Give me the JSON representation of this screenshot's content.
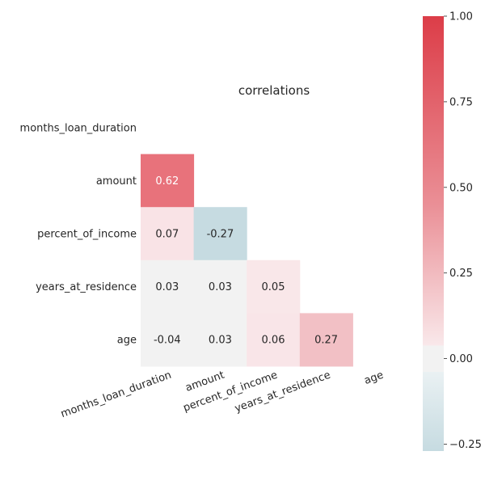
{
  "chart_data": {
    "type": "heatmap",
    "title": "correlations",
    "rows": [
      "months_loan_duration",
      "amount",
      "percent_of_income",
      "years_at_residence",
      "age"
    ],
    "columns": [
      "months_loan_duration",
      "amount",
      "percent_of_income",
      "years_at_residence",
      "age"
    ],
    "mask": "upper-triangle-and-diagonal",
    "cells": [
      {
        "row": 1,
        "col": 0,
        "label": "0.62",
        "value": 0.62,
        "color": "#e8727b"
      },
      {
        "row": 2,
        "col": 0,
        "label": "0.07",
        "value": 0.07,
        "color": "#f9e3e6"
      },
      {
        "row": 2,
        "col": 1,
        "label": "-0.27",
        "value": -0.27,
        "color": "#c6dbe1"
      },
      {
        "row": 3,
        "col": 0,
        "label": "0.03",
        "value": 0.03,
        "color": "#f2f2f2"
      },
      {
        "row": 3,
        "col": 1,
        "label": "0.03",
        "value": 0.03,
        "color": "#f2f2f2"
      },
      {
        "row": 3,
        "col": 2,
        "label": "0.05",
        "value": 0.05,
        "color": "#f9e7e9"
      },
      {
        "row": 4,
        "col": 0,
        "label": "-0.04",
        "value": -0.04,
        "color": "#f2f2f2"
      },
      {
        "row": 4,
        "col": 1,
        "label": "0.03",
        "value": 0.03,
        "color": "#f2f2f2"
      },
      {
        "row": 4,
        "col": 2,
        "label": "0.06",
        "value": 0.06,
        "color": "#f9e5e8"
      },
      {
        "row": 4,
        "col": 3,
        "label": "0.27",
        "value": 0.27,
        "color": "#f2c0c5"
      }
    ],
    "colorbar": {
      "range": [
        -0.27,
        1.0
      ],
      "ticks": [
        {
          "value": 1.0,
          "label": "1.00"
        },
        {
          "value": 0.75,
          "label": "0.75"
        },
        {
          "value": 0.5,
          "label": "0.50"
        },
        {
          "value": 0.25,
          "label": "0.25"
        },
        {
          "value": 0.0,
          "label": "0.00"
        },
        {
          "value": -0.25,
          "label": "−0.25"
        }
      ],
      "colors": {
        "max": "#dc3d48",
        "zero": "#f2f2f2",
        "min": "#c6dbe1"
      }
    },
    "grid": false,
    "annotation_color_dark": "#262626",
    "annotation_color_light": "#ffffff",
    "label_color": "#262626"
  }
}
